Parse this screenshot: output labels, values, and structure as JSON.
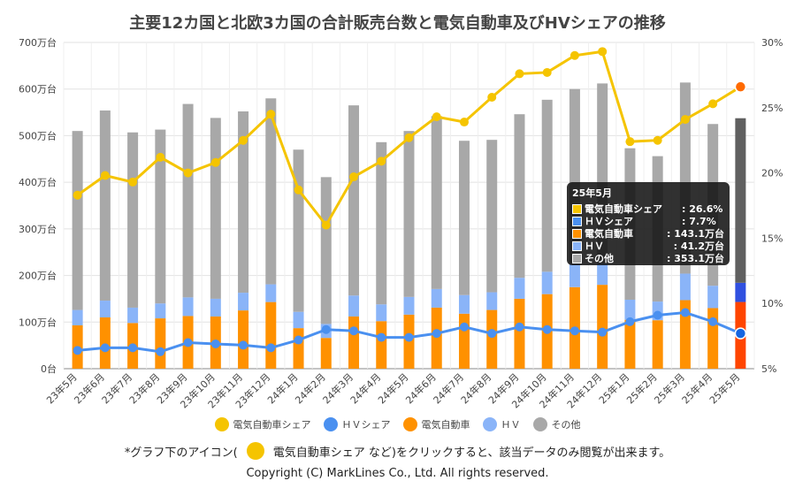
{
  "title": "主要12カ国と北欧3カ国の合計販売台数と電気自動車及びHVシェアの推移",
  "colors": {
    "ev_share": "#F5C400",
    "hv_share": "#4A90F0",
    "ev": "#FF9100",
    "hv": "#8AB4F8",
    "other": "#A8A8A8",
    "highlight_ev": "#FF4500",
    "highlight_hv": "#3050E0",
    "highlight_other": "#606060"
  },
  "legend": [
    {
      "label": "電気自動車シェア",
      "color": "#F5C400",
      "icon": "circle"
    },
    {
      "label": "ＨＶシェア",
      "color": "#4A90F0",
      "icon": "circle"
    },
    {
      "label": "電気自動車",
      "color": "#FF9100",
      "icon": "circle"
    },
    {
      "label": "ＨＶ",
      "color": "#8AB4F8",
      "icon": "circle"
    },
    {
      "label": "その他",
      "color": "#A8A8A8",
      "icon": "circle"
    }
  ],
  "note": {
    "before": "*グラフ下のアイコン(",
    "after": "電気自動車シェア など)をクリックすると、該当データのみ閲覧が出来ます。"
  },
  "copyright": "Copyright (C) MarkLines Co., Ltd. All rights reserved.",
  "tooltip": {
    "title": "25年5月",
    "rows": [
      {
        "label": "電気自動車シェア",
        "value": ": 26.6%",
        "color": "#F5C400"
      },
      {
        "label": "ＨＶシェア",
        "value": ": 7.7%",
        "color": "#4A90F0"
      },
      {
        "label": "電気自動車",
        "value": ": 143.1万台",
        "color": "#FF9100"
      },
      {
        "label": "ＨＶ",
        "value": ": 41.2万台",
        "color": "#8AB4F8"
      },
      {
        "label": "その他",
        "value": ": 353.1万台",
        "color": "#A8A8A8"
      }
    ]
  },
  "chart_data": {
    "type": "bar",
    "stacked": true,
    "categories": [
      "23年5月",
      "23年6月",
      "23年7月",
      "23年8月",
      "23年9月",
      "23年10月",
      "23年11月",
      "23年12月",
      "24年1月",
      "24年2月",
      "24年3月",
      "24年4月",
      "24年5月",
      "24年6月",
      "24年7月",
      "24年8月",
      "24年9月",
      "24年10月",
      "24年11月",
      "24年12月",
      "25年1月",
      "25年2月",
      "25年3月",
      "25年4月",
      "25年5月"
    ],
    "y_left": {
      "ticks": [
        "0台",
        "100万台",
        "200万台",
        "300万台",
        "400万台",
        "500万台",
        "600万台",
        "700万台"
      ],
      "ylim": [
        0,
        700
      ]
    },
    "y_right": {
      "ticks": [
        "5%",
        "10%",
        "15%",
        "20%",
        "25%",
        "30%"
      ],
      "ylim": [
        5,
        30
      ]
    },
    "grid": true,
    "legend_position": "bottom",
    "series": [
      {
        "name": "電気自動車",
        "axis": "left",
        "kind": "bar",
        "values": [
          93,
          110,
          98,
          108,
          113,
          112,
          125,
          143,
          87,
          66,
          112,
          102,
          116,
          131,
          118,
          126,
          150,
          160,
          175,
          180,
          105,
          104,
          147,
          130,
          143.1
        ]
      },
      {
        "name": "ＨＶ",
        "axis": "left",
        "kind": "bar",
        "values": [
          33,
          36,
          33,
          32,
          40,
          38,
          38,
          38,
          35,
          30,
          45,
          36,
          38,
          40,
          40,
          38,
          45,
          48,
          50,
          46,
          43,
          40,
          57,
          48,
          41.2
        ]
      },
      {
        "name": "その他",
        "axis": "left",
        "kind": "bar",
        "values": [
          384,
          408,
          376,
          373,
          415,
          388,
          389,
          399,
          348,
          315,
          408,
          348,
          356,
          371,
          331,
          327,
          351,
          369,
          375,
          386,
          325,
          312,
          410,
          347,
          353.1
        ]
      },
      {
        "name": "電気自動車シェア",
        "axis": "right",
        "kind": "line",
        "values": [
          18.3,
          19.8,
          19.3,
          21.2,
          20.0,
          20.8,
          22.5,
          24.5,
          18.7,
          16.0,
          19.7,
          20.9,
          22.7,
          24.3,
          23.9,
          25.8,
          27.6,
          27.7,
          29.0,
          29.3,
          22.4,
          22.5,
          24.1,
          25.3,
          26.6
        ]
      },
      {
        "name": "ＨＶシェア",
        "axis": "right",
        "kind": "line",
        "values": [
          6.4,
          6.6,
          6.6,
          6.3,
          7.0,
          6.9,
          6.8,
          6.6,
          7.2,
          8.0,
          7.9,
          7.4,
          7.4,
          7.7,
          8.2,
          7.7,
          8.2,
          8.0,
          7.9,
          7.8,
          8.6,
          9.1,
          9.3,
          8.6,
          7.7
        ]
      }
    ]
  }
}
